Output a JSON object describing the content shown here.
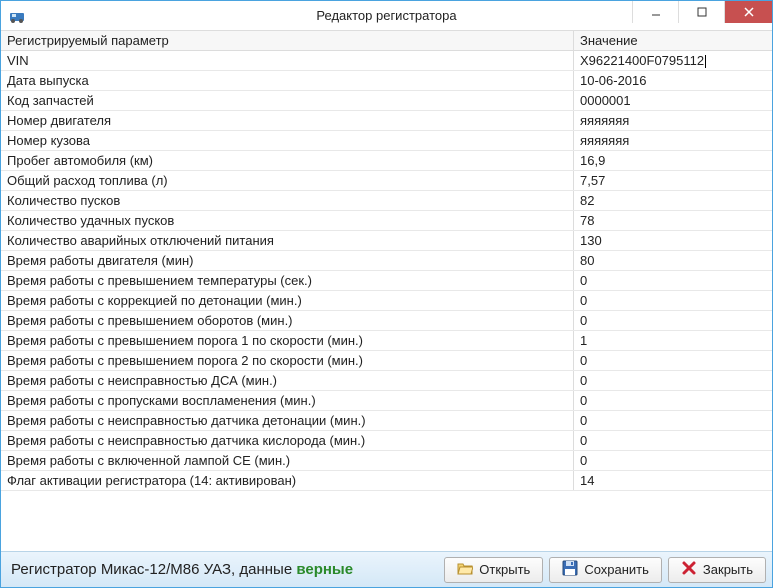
{
  "window": {
    "title": "Редактор регистратора"
  },
  "columns": {
    "param": "Регистрируемый параметр",
    "value": "Значение"
  },
  "rows": [
    {
      "param": "VIN",
      "value": "X96221400F0795112",
      "editing": true
    },
    {
      "param": "Дата выпуска",
      "value": "10-06-2016"
    },
    {
      "param": "Код запчастей",
      "value": "0000001"
    },
    {
      "param": "Номер двигателя",
      "value": "яяяяяяя"
    },
    {
      "param": "Номер кузова",
      "value": "яяяяяяя"
    },
    {
      "param": "Пробег автомобиля (км)",
      "value": "16,9"
    },
    {
      "param": "Общий расход топлива (л)",
      "value": "7,57"
    },
    {
      "param": "Количество пусков",
      "value": "82"
    },
    {
      "param": "Количество удачных пусков",
      "value": "78"
    },
    {
      "param": "Количество аварийных отключений питания",
      "value": "130"
    },
    {
      "param": "Время работы двигателя (мин)",
      "value": "80"
    },
    {
      "param": "Время работы с превышением температуры (сек.)",
      "value": "0"
    },
    {
      "param": "Время работы с коррекцией по детонации (мин.)",
      "value": "0"
    },
    {
      "param": "Время работы с превышением оборотов (мин.)",
      "value": "0"
    },
    {
      "param": "Время работы с превышением порога 1 по скорости (мин.)",
      "value": "1"
    },
    {
      "param": "Время работы с превышением порога 2 по скорости (мин.)",
      "value": "0"
    },
    {
      "param": "Время работы с неисправностью ДСА (мин.)",
      "value": "0"
    },
    {
      "param": "Время работы с пропусками воспламенения (мин.)",
      "value": "0"
    },
    {
      "param": "Время работы с неисправностью датчика детонации (мин.)",
      "value": "0"
    },
    {
      "param": "Время работы с неисправностью датчика кислорода (мин.)",
      "value": "0"
    },
    {
      "param": "Время работы с включенной лампой CE (мин.)",
      "value": "0"
    },
    {
      "param": "Флаг активации регистратора (14: активирован)",
      "value": "14"
    }
  ],
  "status": {
    "prefix": "Регистратор Микас-12/М86 УАЗ, данные ",
    "highlight": "верные"
  },
  "buttons": {
    "open": "Открыть",
    "save": "Сохранить",
    "close": "Закрыть"
  }
}
